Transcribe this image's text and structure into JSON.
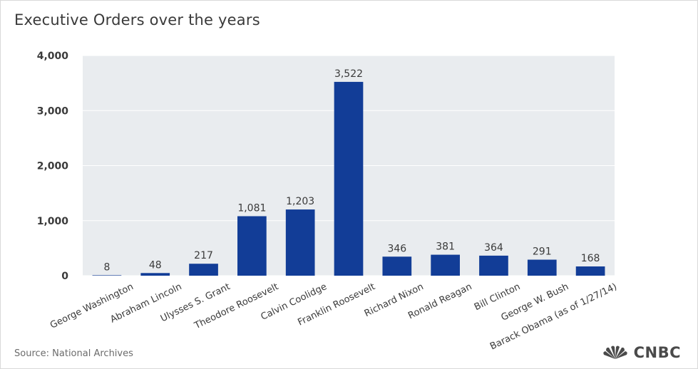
{
  "title": "Executive Orders over the years",
  "source": "Source: National Archives",
  "brand": "CNBC",
  "colors": {
    "bar": "#123d97",
    "plot_bg": "#e9ecef",
    "grid": "#ffffff",
    "text": "#3a3a3a"
  },
  "chart_data": {
    "type": "bar",
    "title": "Executive Orders over the years",
    "xlabel": "",
    "ylabel": "",
    "ylim": [
      0,
      4000
    ],
    "yticks": [
      0,
      1000,
      2000,
      3000,
      4000
    ],
    "ytick_labels": [
      "0",
      "1,000",
      "2,000",
      "3,000",
      "4,000"
    ],
    "grid": true,
    "categories": [
      "George Washington",
      "Abraham Lincoln",
      "Ulysses S. Grant",
      "Theodore Roosevelt",
      "Calvin Coolidge",
      "Franklin Roosevelt",
      "Richard Nixon",
      "Ronald Reagan",
      "Bill Clinton",
      "George W. Bush",
      "Barack Obama (as of 1/27/14)"
    ],
    "values": [
      8,
      48,
      217,
      1081,
      1203,
      3522,
      346,
      381,
      364,
      291,
      168
    ],
    "value_labels": [
      "8",
      "48",
      "217",
      "1,081",
      "1,203",
      "3,522",
      "346",
      "381",
      "364",
      "291",
      "168"
    ]
  }
}
